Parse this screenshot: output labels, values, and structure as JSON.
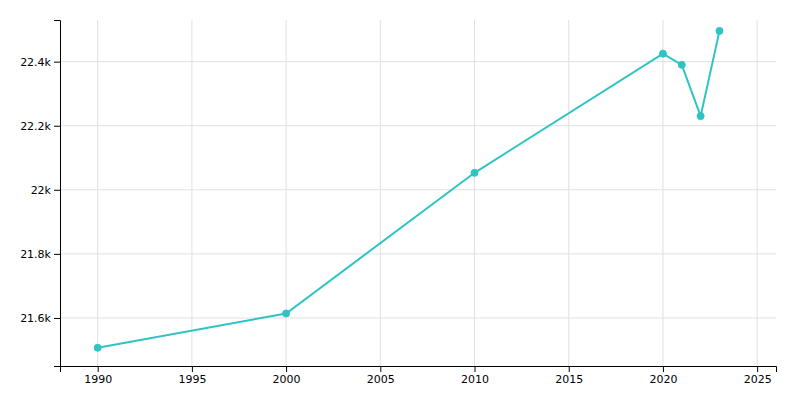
{
  "chart_data": {
    "type": "line",
    "x": [
      1990,
      2000,
      2010,
      2020,
      2021,
      2022,
      2023
    ],
    "values": [
      21507,
      21614,
      22053,
      22425,
      22390,
      22230,
      22496
    ],
    "color": "#2EC4C4",
    "marker": "circle",
    "xlim": [
      1988,
      2026
    ],
    "ylim": [
      21450,
      22530
    ],
    "xticks": [
      1990,
      1995,
      2000,
      2005,
      2010,
      2015,
      2020,
      2025
    ],
    "yticks": [
      {
        "value": 21600,
        "label": "21.6k"
      },
      {
        "value": 21800,
        "label": "21.8k"
      },
      {
        "value": 22000,
        "label": "22k"
      },
      {
        "value": 22200,
        "label": "22.2k"
      },
      {
        "value": 22400,
        "label": "22.4k"
      }
    ],
    "grid": true
  }
}
